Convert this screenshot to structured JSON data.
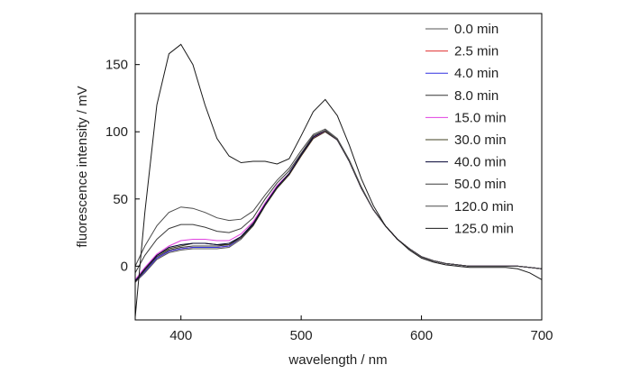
{
  "chart_data": {
    "type": "line",
    "title": "",
    "xlabel": "wavelength / nm",
    "ylabel": "fluorescence intensity / mV",
    "xlim": [
      362,
      700
    ],
    "ylim": [
      -40,
      188
    ],
    "xticks": [
      400,
      500,
      600,
      700
    ],
    "yticks": [
      0,
      50,
      100,
      150
    ],
    "grid": false,
    "legend_position": "top-right",
    "series": [
      {
        "name": "0.0 min",
        "color": "#555555",
        "x": [
          362,
          370,
          380,
          390,
          400,
          410,
          420,
          430,
          440,
          450,
          460,
          470,
          480,
          490,
          500,
          510,
          520,
          530,
          540,
          550,
          560,
          570,
          580,
          590,
          600,
          610,
          620,
          630,
          640,
          650,
          660,
          670,
          680,
          690,
          700
        ],
        "y": [
          -12,
          -5,
          5,
          10,
          12,
          13,
          13,
          13,
          14,
          20,
          30,
          45,
          58,
          68,
          82,
          95,
          100,
          94,
          78,
          58,
          42,
          30,
          20,
          13,
          7,
          4,
          2,
          1,
          0,
          0,
          0,
          0,
          0,
          -1,
          -2
        ]
      },
      {
        "name": "2.5 min",
        "color": "#e03030",
        "x": [
          362,
          370,
          380,
          390,
          400,
          410,
          420,
          430,
          440,
          450,
          460,
          470,
          480,
          490,
          500,
          510,
          520,
          530,
          540,
          550,
          560,
          570,
          580,
          590,
          600,
          610,
          620,
          630,
          640,
          650,
          660,
          670,
          680,
          690,
          700
        ],
        "y": [
          -12,
          -4,
          6,
          11,
          13,
          14,
          14,
          14,
          15,
          21,
          31,
          46,
          59,
          68,
          82,
          95,
          100,
          94,
          78,
          58,
          42,
          30,
          20,
          13,
          7,
          4,
          2,
          1,
          0,
          0,
          0,
          0,
          0,
          -1,
          -2
        ]
      },
      {
        "name": "4.0 min",
        "color": "#3030e0",
        "x": [
          362,
          370,
          380,
          390,
          400,
          410,
          420,
          430,
          440,
          450,
          460,
          470,
          480,
          490,
          500,
          510,
          520,
          530,
          540,
          550,
          560,
          570,
          580,
          590,
          600,
          610,
          620,
          630,
          640,
          650,
          660,
          670,
          680,
          690,
          700
        ],
        "y": [
          -12,
          -4,
          6,
          11,
          13,
          14,
          14,
          14,
          15,
          21,
          31,
          46,
          59,
          69,
          83,
          96,
          100,
          94,
          78,
          58,
          42,
          30,
          20,
          13,
          7,
          4,
          2,
          1,
          0,
          0,
          0,
          0,
          0,
          -1,
          -2
        ]
      },
      {
        "name": "8.0 min",
        "color": "#333333",
        "x": [
          362,
          370,
          380,
          390,
          400,
          410,
          420,
          430,
          440,
          450,
          460,
          470,
          480,
          490,
          500,
          510,
          520,
          530,
          540,
          550,
          560,
          570,
          580,
          590,
          600,
          610,
          620,
          630,
          640,
          650,
          660,
          670,
          680,
          690,
          700
        ],
        "y": [
          -11,
          -3,
          7,
          12,
          14,
          15,
          15,
          15,
          16,
          22,
          32,
          47,
          60,
          69,
          83,
          96,
          100,
          94,
          78,
          58,
          42,
          30,
          20,
          13,
          7,
          4,
          2,
          1,
          0,
          0,
          0,
          0,
          0,
          -1,
          -2
        ]
      },
      {
        "name": "15.0 min",
        "color": "#e040e0",
        "x": [
          362,
          370,
          380,
          390,
          400,
          410,
          420,
          430,
          440,
          450,
          460,
          470,
          480,
          490,
          500,
          510,
          520,
          530,
          540,
          550,
          560,
          570,
          580,
          590,
          600,
          610,
          620,
          630,
          640,
          650,
          660,
          670,
          680,
          690,
          700
        ],
        "y": [
          -10,
          -1,
          9,
          15,
          19,
          20,
          20,
          19,
          19,
          24,
          33,
          47,
          60,
          69,
          83,
          96,
          100,
          94,
          78,
          58,
          42,
          30,
          20,
          13,
          7,
          4,
          2,
          1,
          0,
          0,
          0,
          0,
          0,
          -1,
          -2
        ]
      },
      {
        "name": "30.0 min",
        "color": "#404020",
        "x": [
          362,
          370,
          380,
          390,
          400,
          410,
          420,
          430,
          440,
          450,
          460,
          470,
          480,
          490,
          500,
          510,
          520,
          530,
          540,
          550,
          560,
          570,
          580,
          590,
          600,
          610,
          620,
          630,
          640,
          650,
          660,
          670,
          680,
          690,
          700
        ],
        "y": [
          -12,
          -3,
          8,
          13,
          15,
          17,
          17,
          16,
          16,
          21,
          30,
          45,
          58,
          68,
          82,
          95,
          100,
          94,
          78,
          58,
          42,
          30,
          20,
          13,
          7,
          4,
          2,
          1,
          0,
          0,
          0,
          0,
          0,
          -1,
          -2
        ]
      },
      {
        "name": "40.0 min",
        "color": "#000033",
        "x": [
          362,
          370,
          380,
          390,
          400,
          410,
          420,
          430,
          440,
          450,
          460,
          470,
          480,
          490,
          500,
          510,
          520,
          530,
          540,
          550,
          560,
          570,
          580,
          590,
          600,
          610,
          620,
          630,
          640,
          650,
          660,
          670,
          680,
          690,
          700
        ],
        "y": [
          -11,
          -2,
          8,
          14,
          16,
          17,
          17,
          16,
          17,
          22,
          31,
          46,
          59,
          69,
          83,
          96,
          101,
          94,
          78,
          58,
          42,
          30,
          20,
          13,
          7,
          4,
          2,
          1,
          0,
          0,
          0,
          0,
          0,
          -1,
          -2
        ]
      },
      {
        "name": "50.0 min",
        "color": "#3a3a3a",
        "x": [
          362,
          370,
          380,
          390,
          400,
          410,
          420,
          430,
          440,
          450,
          460,
          470,
          480,
          490,
          500,
          510,
          520,
          530,
          540,
          550,
          560,
          570,
          580,
          590,
          600,
          610,
          620,
          630,
          640,
          650,
          660,
          670,
          680,
          690,
          700
        ],
        "y": [
          -5,
          8,
          20,
          28,
          31,
          31,
          29,
          26,
          25,
          28,
          36,
          50,
          62,
          71,
          84,
          97,
          101,
          94,
          78,
          58,
          42,
          30,
          20,
          13,
          7,
          4,
          2,
          1,
          0,
          0,
          0,
          0,
          0,
          -1,
          -2
        ]
      },
      {
        "name": "120.0 min",
        "color": "#4a4a4a",
        "x": [
          362,
          370,
          380,
          390,
          400,
          410,
          420,
          430,
          440,
          450,
          460,
          470,
          480,
          490,
          500,
          510,
          520,
          530,
          540,
          550,
          560,
          570,
          580,
          590,
          600,
          610,
          620,
          630,
          640,
          650,
          660,
          670,
          680,
          690,
          700
        ],
        "y": [
          0,
          15,
          30,
          40,
          44,
          43,
          40,
          36,
          34,
          35,
          41,
          53,
          64,
          73,
          86,
          98,
          102,
          95,
          79,
          59,
          42,
          30,
          20,
          13,
          7,
          4,
          2,
          1,
          0,
          0,
          0,
          0,
          0,
          -1,
          -2
        ]
      },
      {
        "name": "125.0 min",
        "color": "#1a1a1a",
        "x": [
          362,
          370,
          380,
          390,
          400,
          410,
          420,
          430,
          440,
          450,
          460,
          470,
          480,
          490,
          500,
          510,
          520,
          530,
          540,
          550,
          560,
          570,
          580,
          590,
          600,
          610,
          620,
          630,
          640,
          650,
          660,
          670,
          680,
          690,
          700
        ],
        "y": [
          -38,
          40,
          120,
          158,
          165,
          150,
          120,
          95,
          82,
          77,
          78,
          78,
          76,
          80,
          97,
          115,
          124,
          112,
          90,
          65,
          45,
          30,
          20,
          12,
          6,
          3,
          1,
          0,
          -1,
          -1,
          -1,
          -1,
          -2,
          -5,
          -10
        ]
      }
    ]
  }
}
